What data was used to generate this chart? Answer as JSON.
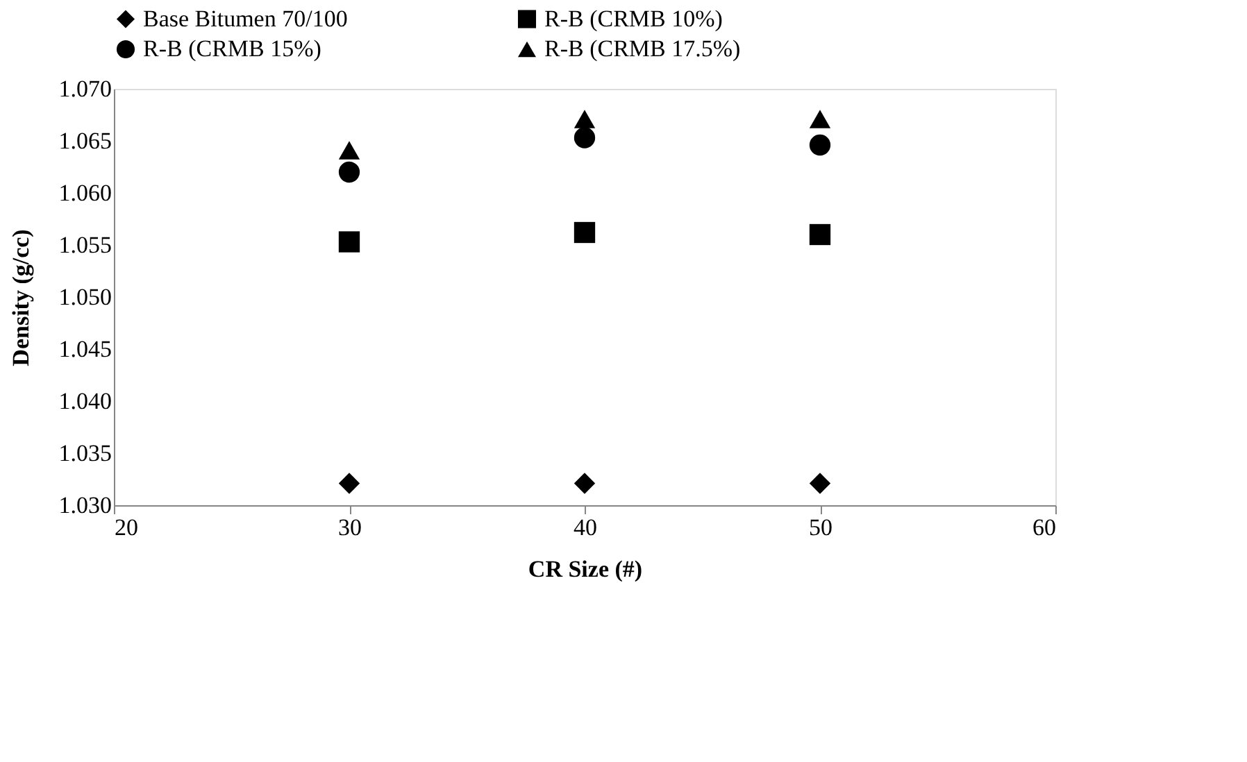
{
  "chart_data": {
    "type": "scatter",
    "xlabel": "CR Size (#)",
    "ylabel": "Density (g/cc)",
    "x": [
      30,
      40,
      50
    ],
    "series": [
      {
        "name": "Base Bitumen 70/100",
        "color": "#000000",
        "marker": "diamond",
        "values": [
          1.0321,
          1.0321,
          1.0321
        ]
      },
      {
        "name": "R-B (CRMB 10%)",
        "color": "#000000",
        "marker": "square",
        "values": [
          1.0553,
          1.0562,
          1.056
        ]
      },
      {
        "name": "R-B (CRMB 15%)",
        "color": "#000000",
        "marker": "circle",
        "values": [
          1.062,
          1.0653,
          1.0646
        ]
      },
      {
        "name": "R-B (CRMB 17.5%)",
        "color": "#000000",
        "marker": "triangle",
        "values": [
          1.0641,
          1.0671,
          1.0671
        ]
      }
    ],
    "xlim": [
      20,
      60
    ],
    "xticks": [
      20,
      30,
      40,
      50,
      60
    ],
    "ylim": [
      1.03,
      1.07
    ],
    "yticks": [
      {
        "value": 1.03,
        "label": "1.030"
      },
      {
        "value": 1.035,
        "label": "1.035"
      },
      {
        "value": 1.04,
        "label": "1.040"
      },
      {
        "value": 1.045,
        "label": "1.045"
      },
      {
        "value": 1.05,
        "label": "1.050"
      },
      {
        "value": 1.055,
        "label": "1.055"
      },
      {
        "value": 1.06,
        "label": "1.060"
      },
      {
        "value": 1.065,
        "label": "1.065"
      },
      {
        "value": 1.07,
        "label": "1.070"
      }
    ],
    "grid": false,
    "legend": "top"
  }
}
